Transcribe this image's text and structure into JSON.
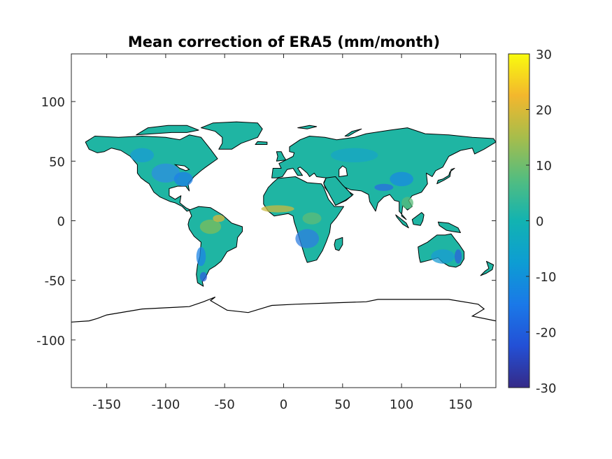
{
  "chart_data": {
    "type": "heatmap",
    "title": "Mean correction of ERA5 (mm/month)",
    "xlabel": "",
    "ylabel": "",
    "xlim": [
      -180,
      180
    ],
    "ylim": [
      -140,
      140
    ],
    "x_ticks": [
      -150,
      -100,
      -50,
      0,
      50,
      100,
      150
    ],
    "x_tick_labels": [
      "-150",
      "-100",
      "-50",
      "0",
      "50",
      "100",
      "150"
    ],
    "y_ticks": [
      100,
      50,
      0,
      -50,
      -100
    ],
    "y_tick_labels": [
      "100",
      "50",
      "0",
      "-50",
      "-100"
    ],
    "colorbar": {
      "min": -30,
      "max": 30,
      "ticks": [
        30,
        20,
        10,
        0,
        -10,
        -20,
        -30
      ],
      "tick_labels": [
        "30",
        "20",
        "10",
        "0",
        "-10",
        "-20",
        "-30"
      ],
      "colormap": "parula"
    },
    "grid": false,
    "background_color": "#ffffff",
    "coastline_color": "#000000",
    "land_base_color": "#1fb5a3"
  }
}
